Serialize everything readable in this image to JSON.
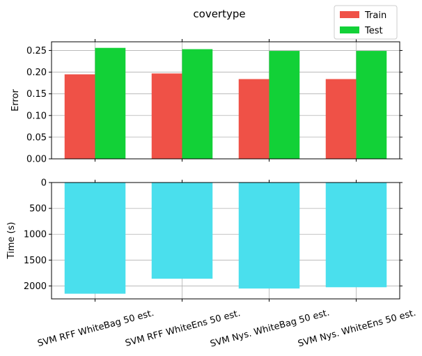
{
  "title": "covertype",
  "chart_data": [
    {
      "type": "bar",
      "panel": "error",
      "ylabel": "Error",
      "ylim": [
        0,
        0.27
      ],
      "yticks": [
        "0.00",
        "0.05",
        "0.10",
        "0.15",
        "0.20",
        "0.25"
      ],
      "categories": [
        "SVM RFF WhiteBag 50 est.",
        "SVM RFF WhiteEns 50 est.",
        "SVM Nys. WhiteBag 50 est.",
        "SVM Nys. WhiteEns 50 est."
      ],
      "series": [
        {
          "name": "Train",
          "color": "#ef5147",
          "values": [
            0.195,
            0.197,
            0.184,
            0.184
          ]
        },
        {
          "name": "Test",
          "color": "#12d137",
          "values": [
            0.256,
            0.253,
            0.249,
            0.249
          ]
        }
      ],
      "grid": true,
      "legend_position": "top-right, above plot"
    },
    {
      "type": "bar",
      "panel": "time",
      "ylabel": "Time (s)",
      "ylim": [
        0,
        2250
      ],
      "y_inverted": true,
      "yticks": [
        "0",
        "500",
        "1000",
        "1500",
        "2000"
      ],
      "categories": [
        "SVM RFF WhiteBag 50 est.",
        "SVM RFF WhiteEns 50 est.",
        "SVM Nys. WhiteBag 50 est.",
        "SVM Nys. WhiteEns 50 est."
      ],
      "series": [
        {
          "color": "#4adfed",
          "values": [
            2150,
            1860,
            2050,
            2025
          ]
        }
      ],
      "grid": true
    }
  ]
}
